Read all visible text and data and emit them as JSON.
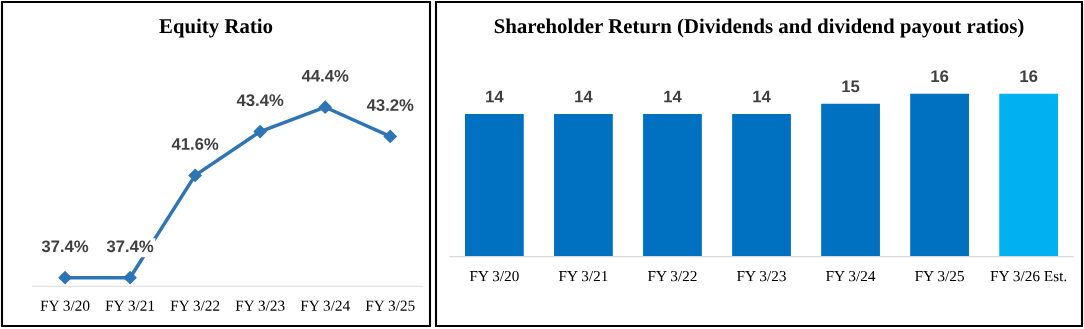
{
  "chart_data": [
    {
      "type": "line",
      "title": "Equity Ratio",
      "categories": [
        "FY 3/20",
        "FY 3/21",
        "FY 3/22",
        "FY 3/23",
        "FY 3/24",
        "FY 3/25"
      ],
      "series": [
        {
          "color": "#2e75b6",
          "values": [
            37.4,
            37.4,
            41.6,
            43.4,
            44.4,
            43.2
          ],
          "value_labels": [
            "37.4%",
            "37.4%",
            "41.6%",
            "43.4%",
            "44.4%",
            "43.2%"
          ]
        }
      ],
      "marker": "diamond",
      "line_style": "solid",
      "tick_labels": "x",
      "grid": false,
      "legend": false
    },
    {
      "type": "bar",
      "title": "Shareholder Return (Dividends and dividend payout ratios)",
      "categories": [
        "FY 3/20",
        "FY 3/21",
        "FY 3/22",
        "FY 3/23",
        "FY 3/24",
        "FY 3/25",
        "FY 3/26 Est."
      ],
      "values": [
        14,
        14,
        14,
        14,
        15,
        16,
        16
      ],
      "colors": [
        "#0070c0",
        "#0070c0",
        "#0070c0",
        "#0070c0",
        "#0070c0",
        "#0070c0",
        "#00b0f0"
      ],
      "data_labels": true,
      "tick_labels": "x",
      "grid": false,
      "legend": false
    }
  ]
}
